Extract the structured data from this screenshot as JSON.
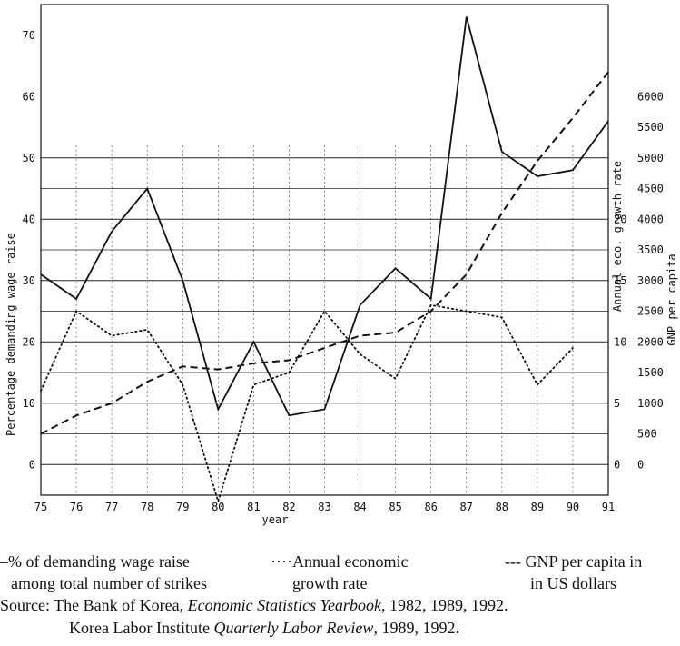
{
  "chart_data": {
    "type": "line",
    "x": [
      "75",
      "76",
      "77",
      "78",
      "79",
      "80",
      "81",
      "82",
      "83",
      "84",
      "85",
      "86",
      "87",
      "88",
      "89",
      "90",
      "91"
    ],
    "xlabel": "year",
    "series": [
      {
        "axis": "left",
        "style": "solid",
        "values": [
          31,
          27,
          38,
          45,
          30,
          9,
          20,
          8,
          9,
          26,
          32,
          27,
          73,
          51,
          47,
          48,
          56
        ]
      },
      {
        "axis": "right_growth",
        "style": "dotted",
        "values": [
          6.0,
          12.5,
          10.5,
          11.0,
          6.5,
          -3.0,
          6.5,
          7.5,
          12.5,
          9.0,
          7.0,
          13.0,
          12.5,
          12.0,
          6.5,
          9.5,
          null
        ]
      },
      {
        "axis": "right_gnp",
        "style": "dashed",
        "values": [
          500,
          800,
          1000,
          1350,
          1600,
          1550,
          1650,
          1700,
          1900,
          2100,
          2150,
          2500,
          3100,
          4100,
          4950,
          5650,
          6400
        ]
      }
    ],
    "left_axis": {
      "label": "Percentage demanding wage raise",
      "ticks": [
        0,
        10,
        20,
        30,
        40,
        50,
        60,
        70
      ],
      "range": [
        -5,
        75
      ]
    },
    "right_axis_growth": {
      "label": "Annual eco. growth rate",
      "ticks": [
        0,
        5,
        10,
        15,
        20
      ],
      "range": [
        -2.5,
        37.5
      ]
    },
    "right_axis_gnp": {
      "label": "GNP per capita",
      "ticks": [
        0,
        500,
        1000,
        1500,
        2000,
        2500,
        3000,
        3500,
        4000,
        4500,
        5000,
        5500,
        6000
      ],
      "range": [
        -500,
        7500
      ]
    },
    "grid": true
  },
  "legend": {
    "wage": [
      "–% of demanding wage raise",
      "among total number of strikes"
    ],
    "growth": [
      "····Annual economic",
      "growth rate"
    ],
    "gnp": [
      "--- GNP per capita in",
      "in US dollars"
    ]
  },
  "source": {
    "line1_prefix": "Source: The Bank of Korea, ",
    "line1_italic": "Economic Statistics Yearbook",
    "line1_suffix": ", 1982, 1989, 1992.",
    "line2_prefix": "Korea Labor Institute ",
    "line2_italic": "Quarterly Labor Review",
    "line2_suffix": ", 1989, 1992."
  }
}
